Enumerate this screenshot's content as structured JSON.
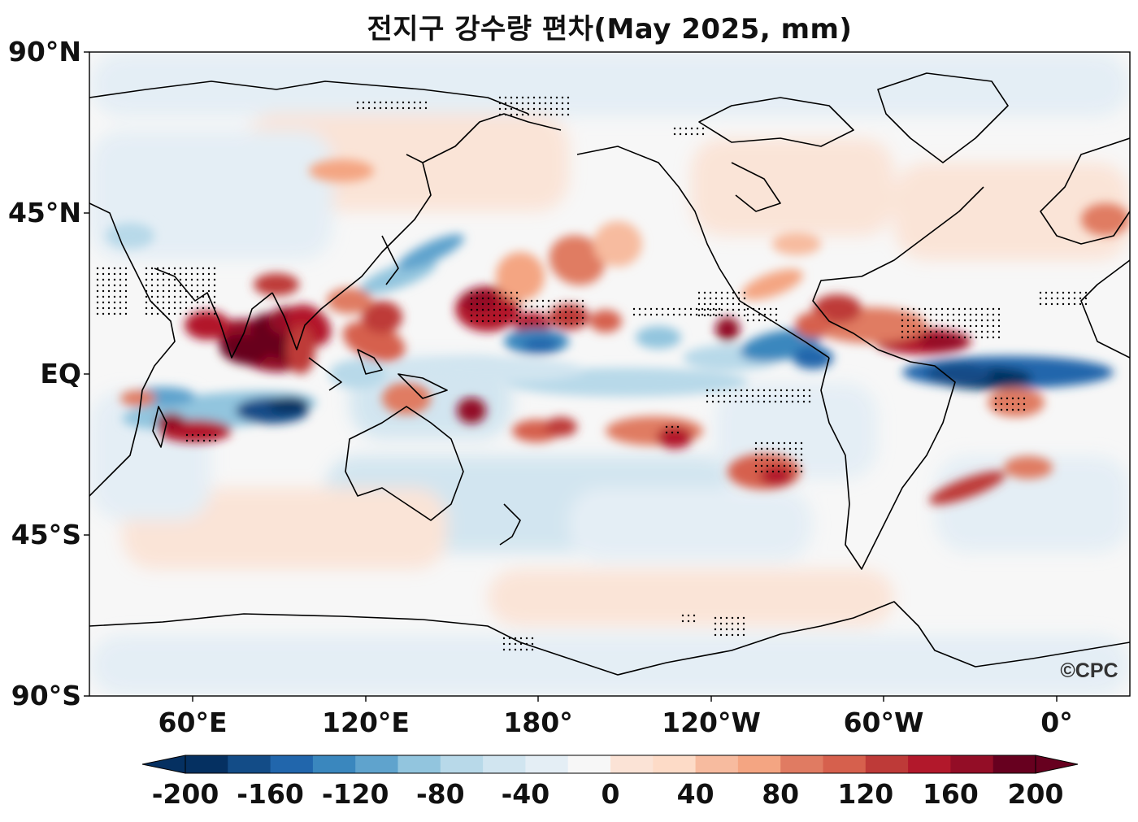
{
  "title": "전지구 강수량 편차(May 2025, mm)",
  "watermark": "©CPC",
  "y_axis_labels": [
    "90°N",
    "45°N",
    "EQ",
    "45°S",
    "90°S"
  ],
  "x_axis_labels": [
    "60°E",
    "120°E",
    "180°",
    "120°W",
    "60°W",
    "0°"
  ],
  "colorbar": {
    "tick_labels": [
      "-200",
      "-160",
      "-120",
      "-80",
      "-40",
      "0",
      "40",
      "80",
      "120",
      "160",
      "200"
    ],
    "min": -200,
    "max": 200,
    "step": 20,
    "colors": [
      "#053061",
      "#134c87",
      "#2166ac",
      "#3a87be",
      "#5fa3cd",
      "#92c5de",
      "#b8d9e9",
      "#d1e5f0",
      "#e4eef5",
      "#f7f7f7",
      "#fbe3d6",
      "#fddbc7",
      "#f7bb9f",
      "#f4a582",
      "#e07b62",
      "#d6604d",
      "#be3a38",
      "#b2182b",
      "#930d26",
      "#67001f"
    ],
    "extend": "both"
  },
  "map": {
    "projection": "Plate Carree, centered 180°",
    "lon_range": [
      "24°E",
      "15°E"
    ],
    "lat_range": [
      "90°S",
      "90°N"
    ],
    "variable": "Precipitation anomaly",
    "units": "mm",
    "stippling": "significance dots",
    "coastlines": true
  }
}
